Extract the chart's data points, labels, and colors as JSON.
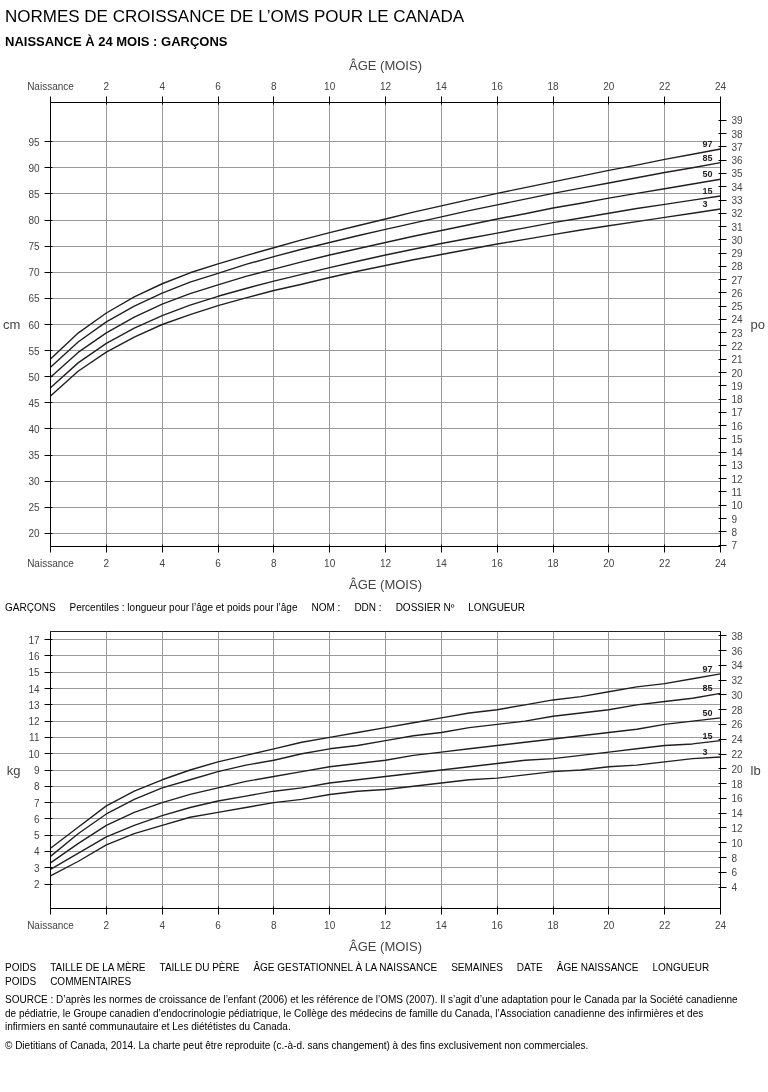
{
  "chart_data": [
    {
      "type": "line",
      "title": "NORMES DE CROISSANCE DE L’OMS POUR LE CANADA",
      "subtitle": "NAISSANCE À 24 MOIS : GARÇONS",
      "xlabel": "ÂGE (MOIS)",
      "x2label": "ÂGE (MOIS)",
      "ylabel": "cm",
      "y2label": "po",
      "x": [
        0,
        1,
        2,
        3,
        4,
        5,
        6,
        7,
        8,
        9,
        10,
        11,
        12,
        13,
        14,
        15,
        16,
        17,
        18,
        19,
        20,
        21,
        22,
        23,
        24
      ],
      "xlim": [
        0,
        24
      ],
      "x2lim": [
        0,
        24
      ],
      "xticks": [
        {
          "value": 0,
          "label": "Naissance"
        },
        2,
        4,
        6,
        8,
        10,
        12,
        14,
        16,
        18,
        20,
        22,
        24
      ],
      "x2ticks": [
        {
          "value": 0,
          "label": "Naissance"
        },
        2,
        4,
        6,
        8,
        10,
        12,
        14,
        16,
        18,
        20,
        22,
        24
      ],
      "ylim": [
        17.5,
        102.5
      ],
      "yticks": [
        20,
        25,
        30,
        35,
        40,
        45,
        50,
        55,
        60,
        65,
        70,
        75,
        80,
        85,
        90,
        95
      ],
      "y2lim": [
        6.89,
        40.35
      ],
      "y2ticks": [
        7,
        8,
        9,
        10,
        11,
        12,
        13,
        14,
        15,
        16,
        17,
        18,
        19,
        20,
        21,
        22,
        23,
        24,
        25,
        26,
        27,
        28,
        29,
        30,
        31,
        32,
        33,
        34,
        35,
        36,
        37,
        38,
        39
      ],
      "grid": true,
      "series": [
        {
          "name": "3",
          "color": "#231f20",
          "values": [
            46.3,
            51.1,
            54.7,
            57.6,
            60.0,
            61.9,
            63.6,
            65.1,
            66.5,
            67.7,
            69.0,
            70.2,
            71.3,
            72.4,
            73.4,
            74.4,
            75.4,
            76.3,
            77.2,
            78.1,
            78.9,
            79.7,
            80.5,
            81.3,
            82.1
          ]
        },
        {
          "name": "15",
          "color": "#231f20",
          "values": [
            47.9,
            52.7,
            56.4,
            59.3,
            61.7,
            63.7,
            65.4,
            66.9,
            68.3,
            69.6,
            70.9,
            72.1,
            73.3,
            74.4,
            75.5,
            76.5,
            77.5,
            78.5,
            79.5,
            80.4,
            81.3,
            82.2,
            83.0,
            83.8,
            84.6
          ]
        },
        {
          "name": "50",
          "color": "#231f20",
          "values": [
            49.9,
            54.7,
            58.4,
            61.4,
            63.9,
            65.9,
            67.6,
            69.2,
            70.6,
            72.0,
            73.3,
            74.5,
            75.7,
            76.9,
            78.0,
            79.1,
            80.2,
            81.2,
            82.3,
            83.2,
            84.2,
            85.1,
            86.0,
            86.9,
            87.8
          ]
        },
        {
          "name": "85",
          "color": "#231f20",
          "values": [
            51.8,
            56.7,
            60.5,
            63.5,
            66.0,
            68.1,
            69.8,
            71.5,
            73.0,
            74.4,
            75.7,
            77.0,
            78.2,
            79.4,
            80.6,
            81.8,
            82.9,
            84.0,
            85.1,
            86.1,
            87.1,
            88.1,
            89.1,
            90.0,
            91.0
          ]
        },
        {
          "name": "97",
          "color": "#231f20",
          "values": [
            53.4,
            58.4,
            62.2,
            65.3,
            67.8,
            69.9,
            71.6,
            73.2,
            74.7,
            76.2,
            77.6,
            78.9,
            80.2,
            81.5,
            82.7,
            83.9,
            85.1,
            86.2,
            87.3,
            88.4,
            89.5,
            90.5,
            91.6,
            92.6,
            93.6
          ]
        }
      ],
      "annotations": [
        "GARÇONS",
        "Percentiles : longueur pour l’âge et poids pour l’âge",
        "NOM :",
        "DDN :",
        "DOSSIER Nº",
        "LONGUEUR"
      ]
    },
    {
      "type": "line",
      "xlabel": "ÂGE (MOIS)",
      "ylabel": "kg",
      "y2label": "lb",
      "x": [
        0,
        1,
        2,
        3,
        4,
        5,
        6,
        7,
        8,
        9,
        10,
        11,
        12,
        13,
        14,
        15,
        16,
        17,
        18,
        19,
        20,
        21,
        22,
        23,
        24
      ],
      "xlim": [
        0,
        24
      ],
      "xticks": [
        {
          "value": 0,
          "label": "Naissance"
        },
        2,
        4,
        6,
        8,
        10,
        12,
        14,
        16,
        18,
        20,
        22,
        24
      ],
      "ylim": [
        0.5,
        17.5
      ],
      "yticks": [
        2,
        3,
        4,
        5,
        6,
        7,
        8,
        9,
        10,
        11,
        12,
        13,
        14,
        15,
        16,
        17
      ],
      "y2lim": [
        1.1,
        38.58
      ],
      "y2ticks": [
        4,
        6,
        8,
        10,
        12,
        14,
        16,
        18,
        20,
        22,
        24,
        26,
        28,
        30,
        32,
        34,
        36,
        38
      ],
      "grid": true,
      "series": [
        {
          "name": "3",
          "color": "#231f20",
          "values": [
            2.5,
            3.4,
            4.4,
            5.1,
            5.6,
            6.1,
            6.4,
            6.7,
            7.0,
            7.2,
            7.5,
            7.7,
            7.8,
            8.0,
            8.2,
            8.4,
            8.5,
            8.7,
            8.9,
            9.0,
            9.2,
            9.3,
            9.5,
            9.7,
            9.8
          ]
        },
        {
          "name": "15",
          "color": "#231f20",
          "values": [
            2.9,
            3.9,
            4.9,
            5.6,
            6.2,
            6.7,
            7.1,
            7.4,
            7.7,
            7.9,
            8.2,
            8.4,
            8.6,
            8.8,
            9.0,
            9.2,
            9.4,
            9.6,
            9.7,
            9.9,
            10.1,
            10.3,
            10.5,
            10.6,
            10.8
          ]
        },
        {
          "name": "50",
          "color": "#231f20",
          "values": [
            3.3,
            4.5,
            5.6,
            6.4,
            7.0,
            7.5,
            7.9,
            8.3,
            8.6,
            8.9,
            9.2,
            9.4,
            9.6,
            9.9,
            10.1,
            10.3,
            10.5,
            10.7,
            10.9,
            11.1,
            11.3,
            11.5,
            11.8,
            12.0,
            12.2
          ]
        },
        {
          "name": "85",
          "color": "#231f20",
          "values": [
            3.7,
            5.1,
            6.3,
            7.2,
            7.9,
            8.4,
            8.9,
            9.3,
            9.6,
            10.0,
            10.3,
            10.5,
            10.8,
            11.1,
            11.3,
            11.6,
            11.8,
            12.0,
            12.3,
            12.5,
            12.7,
            13.0,
            13.2,
            13.4,
            13.7
          ]
        },
        {
          "name": "97",
          "color": "#231f20",
          "values": [
            4.2,
            5.5,
            6.8,
            7.7,
            8.4,
            9.0,
            9.5,
            9.9,
            10.3,
            10.7,
            11.0,
            11.3,
            11.6,
            11.9,
            12.2,
            12.5,
            12.7,
            13.0,
            13.3,
            13.5,
            13.8,
            14.1,
            14.3,
            14.6,
            14.9
          ]
        }
      ],
      "annotations": [
        "POIDS",
        "TAILLE DE LA MÈRE",
        "TAILLE DU PÈRE",
        "ÂGE GESTATIONNEL À LA NAISSANCE",
        "SEMAINES",
        "DATE",
        "ÂGE NAISSANCE",
        "LONGUEUR",
        "POIDS",
        "COMMENTAIRES",
        "SOURCE : D’après les normes de croissance de l’enfant (2006) et les référence de l’OMS (2007). Il s’agit d’une adaptation pour le Canada par la Société canadienne de pédiatrie, le Groupe canadien d’endocrinologie pédiatrique, le Collège des médecins de famille du Canada, l’Association canadienne des infirmières et des infirmiers en santé communautaire et Les diététistes du Canada.",
        "© Dietitians of Canada, 2014. La charte peut être reproduite (c.-à-d. sans changement) à des fins exclusivement non commerciales."
      ]
    }
  ]
}
